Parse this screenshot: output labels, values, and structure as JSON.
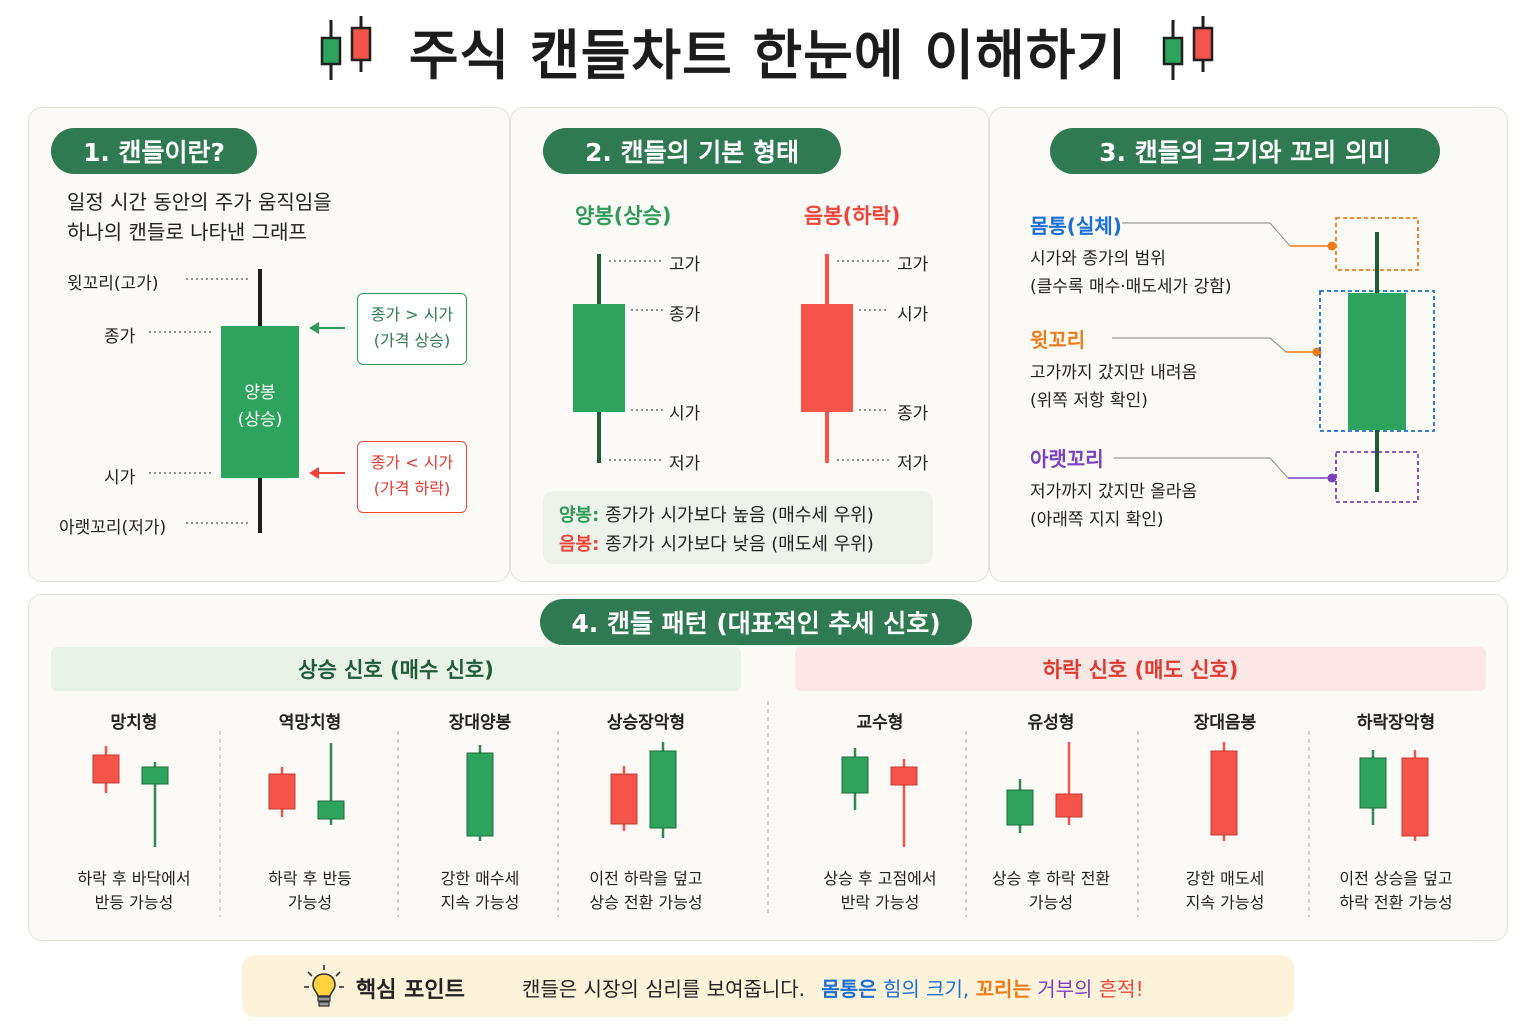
{
  "title": "주식 캔들차트 한눈에 이해하기",
  "colors": {
    "up": "#2ea35d",
    "down": "#f4544a",
    "accent": "#2f7a52",
    "blue": "#1a6fd6",
    "orange": "#f07a18",
    "purple": "#7a3fc2"
  },
  "section1": {
    "heading": "1. 캔들이란?",
    "intro_line1": "일정 시간 동안의 주가 움직임을",
    "intro_line2": "하나의 캔들로 나타낸 그래프",
    "upper_wick": "윗꼬리(고가)",
    "close": "종가",
    "open": "시가",
    "lower_wick": "아랫꼬리(저가)",
    "body_line1": "양봉",
    "body_line2": "(상승)",
    "up_box_line1": "종가 > 시가",
    "up_box_line2": "(가격 상승)",
    "down_box_line1": "종가 < 시가",
    "down_box_line2": "(가격 하락)"
  },
  "section2": {
    "heading": "2. 캔들의 기본 형태",
    "bull_title": "양봉(상승)",
    "bear_title": "음봉(하락)",
    "bull_labels": [
      "고가",
      "종가",
      "시가",
      "저가"
    ],
    "bear_labels": [
      "고가",
      "시가",
      "종가",
      "저가"
    ],
    "legend_bull_key": "양봉:",
    "legend_bull_text": "종가가 시가보다 높음 (매수세 우위)",
    "legend_bear_key": "음봉:",
    "legend_bear_text": "종가가 시가보다 낮음 (매도세 우위)"
  },
  "section3": {
    "heading": "3. 캔들의 크기와 꼬리 의미",
    "body_title": "몸통(실체)",
    "body_line1": "시가와 종가의 범위",
    "body_line2": "(클수록 매수·매도세가 강함)",
    "upper_title": "윗꼬리",
    "upper_line1": "고가까지 갔지만 내려옴",
    "upper_line2": "(위쪽 저항 확인)",
    "lower_title": "아랫꼬리",
    "lower_line1": "저가까지 갔지만 올라옴",
    "lower_line2": "(아래쪽 지지 확인)"
  },
  "section4": {
    "heading": "4. 캔들 패턴 (대표적인 추세 신호)",
    "up_header": "상승 신호 (매수 신호)",
    "down_header": "하락 신호 (매도 신호)",
    "up_patterns": [
      {
        "name": "망치형",
        "desc1": "하락 후 바닥에서",
        "desc2": "반등 가능성"
      },
      {
        "name": "역망치형",
        "desc1": "하락 후 반등",
        "desc2": "가능성"
      },
      {
        "name": "장대양봉",
        "desc1": "강한 매수세",
        "desc2": "지속 가능성"
      },
      {
        "name": "상승장악형",
        "desc1": "이전 하락을 덮고",
        "desc2": "상승 전환 가능성"
      }
    ],
    "down_patterns": [
      {
        "name": "교수형",
        "desc1": "상승 후 고점에서",
        "desc2": "반락 가능성"
      },
      {
        "name": "유성형",
        "desc1": "상승 후 하락 전환",
        "desc2": "가능성"
      },
      {
        "name": "장대음봉",
        "desc1": "강한 매도세",
        "desc2": "지속 가능성"
      },
      {
        "name": "하락장악형",
        "desc1": "이전 상승을 덮고",
        "desc2": "하락 전환 가능성"
      }
    ]
  },
  "footer": {
    "label": "핵심 포인트",
    "text": "캔들은 시장의 심리를 보여줍니다.",
    "p1": "몸통은",
    "p2": "힘의 크기,",
    "p3": "꼬리는",
    "p4": "거부의",
    "p5": "흔적!"
  }
}
